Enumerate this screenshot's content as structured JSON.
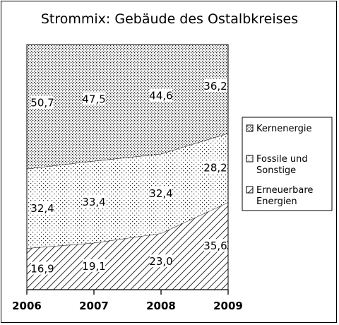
{
  "chart_data": {
    "type": "area",
    "stacked": true,
    "percent": true,
    "title": "Strommix: Gebäude des Ostalbkreises",
    "xlabel": "",
    "ylabel": "",
    "x": [
      "2006",
      "2007",
      "2008",
      "2009"
    ],
    "ylim": [
      0,
      100
    ],
    "grid": false,
    "legend": "right",
    "series": [
      {
        "name": "Erneuerbare Energien",
        "values": [
          16.9,
          19.1,
          23.0,
          35.6
        ],
        "labels": [
          "16,9",
          "19,1",
          "23,0",
          "35,6"
        ],
        "pattern": "diagonal-hatch"
      },
      {
        "name": "Fossile und Sonstige",
        "values": [
          32.4,
          33.4,
          32.4,
          28.2
        ],
        "labels": [
          "32,4",
          "33,4",
          "32,4",
          "28,2"
        ],
        "pattern": "sparse-dots"
      },
      {
        "name": "Kernenergie",
        "values": [
          50.7,
          47.5,
          44.6,
          36.2
        ],
        "labels": [
          "50,7",
          "47,5",
          "44,6",
          "36,2"
        ],
        "pattern": "dense-dots"
      }
    ],
    "legend_entries": [
      {
        "lines": [
          "Kernenergie"
        ]
      },
      {
        "lines": [
          "Fossile und",
          "Sonstige"
        ]
      },
      {
        "lines": [
          "Erneuerbare",
          "Energien"
        ]
      }
    ]
  }
}
